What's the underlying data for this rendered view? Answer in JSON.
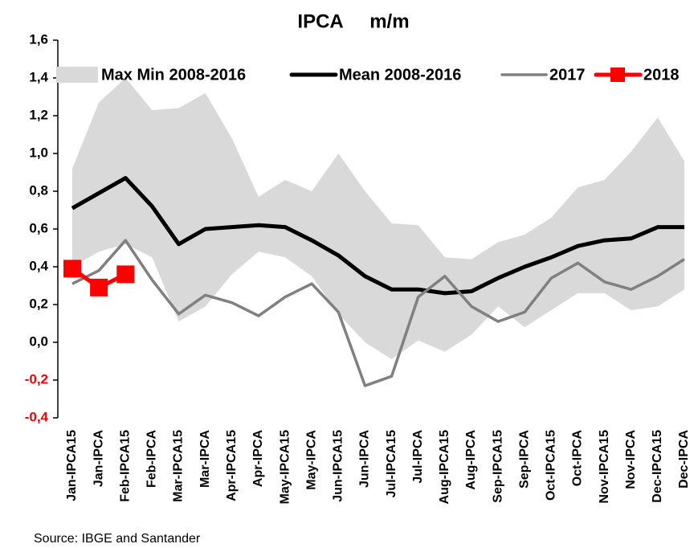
{
  "chart_data": {
    "type": "line",
    "title": "IPCA     m/m",
    "source": "Source: IBGE and Santander",
    "categories": [
      "Jan-IPCA15",
      "Jan-IPCA",
      "Feb-IPCA15",
      "Feb-IPCA",
      "Mar-IPCA15",
      "Mar-IPCA",
      "Apr-IPCA15",
      "Apr-IPCA",
      "May-IPCA15",
      "May-IPCA",
      "Jun-IPCA15",
      "Jun-IPCA",
      "Jul-IPCA15",
      "Jul-IPCA",
      "Aug-IPCA15",
      "Aug-IPCA",
      "Sep-IPCA15",
      "Sep-IPCA",
      "Oct-IPCA15",
      "Oct-IPCA",
      "Nov-IPCA15",
      "Nov-IPCA",
      "Dec-IPCA15",
      "Dec-IPCA"
    ],
    "ylim": [
      -0.4,
      1.6
    ],
    "yticks": [
      {
        "value": -0.4,
        "label": "-0,4"
      },
      {
        "value": -0.2,
        "label": "-0,2"
      },
      {
        "value": 0,
        "label": "0,0"
      },
      {
        "value": 0.2,
        "label": "0,2"
      },
      {
        "value": 0.4,
        "label": "0,4"
      },
      {
        "value": 0.6,
        "label": "0,6"
      },
      {
        "value": 0.8,
        "label": "0,8"
      },
      {
        "value": 1.0,
        "label": "1,0"
      },
      {
        "value": 1.2,
        "label": "1,2"
      },
      {
        "value": 1.4,
        "label": "1,4"
      },
      {
        "value": 1.6,
        "label": "1,6"
      }
    ],
    "negative_tick_color": "#ff0000",
    "series": [
      {
        "name": "Max Min 2008-2016",
        "kind": "band",
        "color": "#d9d9d9",
        "max": [
          0.92,
          1.27,
          1.4,
          1.23,
          1.24,
          1.32,
          1.08,
          0.77,
          0.86,
          0.8,
          1.0,
          0.8,
          0.63,
          0.62,
          0.45,
          0.44,
          0.53,
          0.57,
          0.66,
          0.82,
          0.86,
          1.01,
          1.19,
          0.96
        ],
        "min": [
          0.4,
          0.48,
          0.52,
          0.45,
          0.11,
          0.19,
          0.36,
          0.48,
          0.45,
          0.35,
          0.15,
          0.0,
          -0.09,
          0.01,
          -0.05,
          0.04,
          0.19,
          0.08,
          0.17,
          0.26,
          0.26,
          0.17,
          0.19,
          0.28
        ]
      },
      {
        "name": "Mean 2008-2016",
        "kind": "line",
        "color": "#000000",
        "width": 5,
        "values": [
          0.71,
          0.79,
          0.87,
          0.72,
          0.52,
          0.6,
          0.61,
          0.62,
          0.61,
          0.54,
          0.46,
          0.35,
          0.28,
          0.28,
          0.26,
          0.27,
          0.34,
          0.4,
          0.45,
          0.51,
          0.54,
          0.55,
          0.61,
          0.61
        ]
      },
      {
        "name": "2017",
        "kind": "line",
        "color": "#808080",
        "width": 3.5,
        "values": [
          0.31,
          0.38,
          0.54,
          0.33,
          0.15,
          0.25,
          0.21,
          0.14,
          0.24,
          0.31,
          0.16,
          -0.23,
          -0.18,
          0.24,
          0.35,
          0.19,
          0.11,
          0.16,
          0.34,
          0.42,
          0.32,
          0.28,
          0.35,
          0.44
        ]
      },
      {
        "name": "2018",
        "kind": "marker-line",
        "color": "#ff0000",
        "width": 5,
        "values": [
          0.39,
          0.29,
          0.36,
          null,
          null,
          null,
          null,
          null,
          null,
          null,
          null,
          null,
          null,
          null,
          null,
          null,
          null,
          null,
          null,
          null,
          null,
          null,
          null,
          null
        ]
      }
    ]
  }
}
